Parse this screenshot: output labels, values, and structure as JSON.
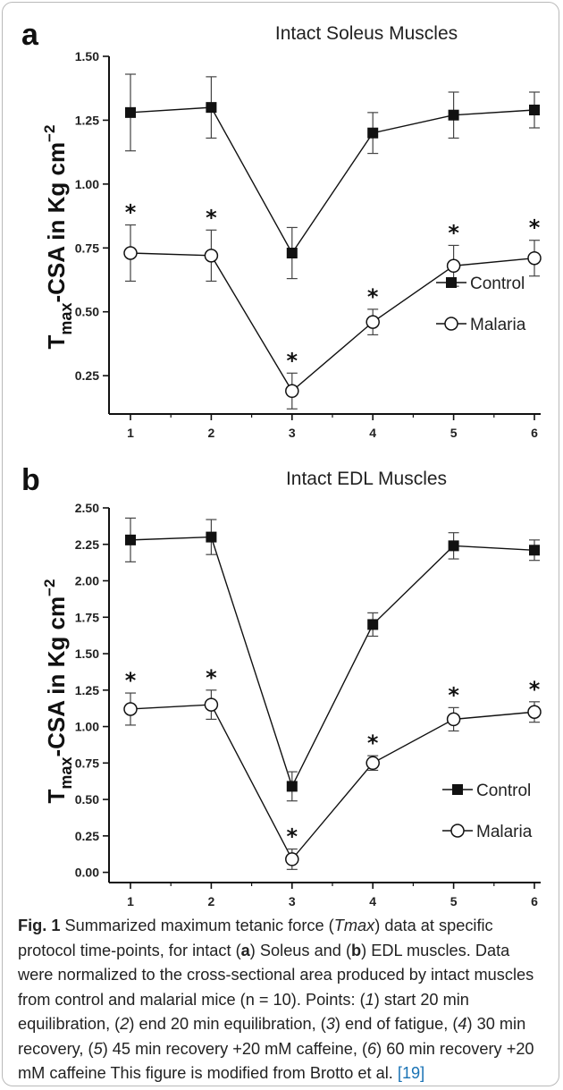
{
  "chart_data": [
    {
      "type": "line",
      "panel_letter": "a",
      "title": "Intact Soleus Muscles",
      "ylabel_main": "T",
      "ylabel_sub": "max",
      "ylabel_rest": "-CSA in Kg cm",
      "ylabel_sup": "−2",
      "x": [
        1,
        2,
        3,
        4,
        5,
        6
      ],
      "x_tick_labels": [
        "1",
        "2",
        "3",
        "4",
        "5",
        "6"
      ],
      "y_ticks": [
        0.25,
        0.5,
        0.75,
        1.0,
        1.25,
        1.5
      ],
      "y_tick_labels": [
        "0.25",
        "0.50",
        "0.75",
        "1.00",
        "1.25",
        "1.50"
      ],
      "ylim": [
        0.1,
        1.5
      ],
      "series": [
        {
          "name": "Control",
          "marker": "filled-square",
          "values": [
            1.28,
            1.3,
            0.73,
            1.2,
            1.27,
            1.29
          ],
          "errors": [
            0.15,
            0.12,
            0.1,
            0.08,
            0.09,
            0.07
          ]
        },
        {
          "name": "Malaria",
          "marker": "open-circle",
          "values": [
            0.73,
            0.72,
            0.19,
            0.46,
            0.68,
            0.71
          ],
          "errors": [
            0.11,
            0.1,
            0.07,
            0.05,
            0.08,
            0.07
          ]
        }
      ],
      "significance_markers": [
        {
          "x": 1,
          "text": "*"
        },
        {
          "x": 2,
          "text": "*"
        },
        {
          "x": 3,
          "text": "*"
        },
        {
          "x": 4,
          "text": "*"
        },
        {
          "x": 5,
          "text": "*"
        },
        {
          "x": 6,
          "text": "*"
        }
      ],
      "legend_position": "right"
    },
    {
      "type": "line",
      "panel_letter": "b",
      "title": "Intact EDL Muscles",
      "ylabel_main": "T",
      "ylabel_sub": "max",
      "ylabel_rest": "-CSA in Kg cm",
      "ylabel_sup": "−2",
      "x": [
        1,
        2,
        3,
        4,
        5,
        6
      ],
      "x_tick_labels": [
        "1",
        "2",
        "3",
        "4",
        "5",
        "6"
      ],
      "y_ticks": [
        0.0,
        0.25,
        0.5,
        0.75,
        1.0,
        1.25,
        1.5,
        1.75,
        2.0,
        2.25,
        2.5
      ],
      "y_tick_labels": [
        "0.00",
        "0.25",
        "0.50",
        "0.75",
        "1.00",
        "1.25",
        "1.50",
        "1.75",
        "2.00",
        "2.25",
        "2.50"
      ],
      "ylim": [
        -0.07,
        2.5
      ],
      "series": [
        {
          "name": "Control",
          "marker": "filled-square",
          "values": [
            2.28,
            2.3,
            0.59,
            1.7,
            2.24,
            2.21
          ],
          "errors": [
            0.15,
            0.12,
            0.1,
            0.08,
            0.09,
            0.07
          ]
        },
        {
          "name": "Malaria",
          "marker": "open-circle",
          "values": [
            1.12,
            1.15,
            0.09,
            0.75,
            1.05,
            1.1
          ],
          "errors": [
            0.11,
            0.1,
            0.07,
            0.05,
            0.08,
            0.07
          ]
        }
      ],
      "significance_markers": [
        {
          "x": 1,
          "text": "*"
        },
        {
          "x": 2,
          "text": "*"
        },
        {
          "x": 3,
          "text": "*"
        },
        {
          "x": 4,
          "text": "*"
        },
        {
          "x": 5,
          "text": "*"
        },
        {
          "x": 6,
          "text": "*"
        }
      ],
      "legend_position": "right"
    }
  ],
  "caption": {
    "label": "Fig. 1",
    "t1": "  Summarized maximum tetanic force (",
    "t2": "Tmax",
    "t3": ") data at specific protocol time-points, for intact (",
    "t4": "a",
    "t5": ") Soleus and (",
    "t6": "b",
    "t7": ") EDL muscles. Data were normalized to the cross-sectional area produced by intact muscles from control and malarial mice (n = 10). Points: (",
    "p1": "1",
    "t8": ") start 20 min equilibration, (",
    "p2": "2",
    "t9": ") end 20 min equilibration, (",
    "p3": "3",
    "t10": ") end of fatigue, (",
    "p4": "4",
    "t11": ") 30 min recovery, (",
    "p5": "5",
    "t12": ") 45 min recovery +20 mM caffeine, (",
    "p6": "6",
    "t13": ") 60 min recovery +20 mM caffeine This figure is modified from Brotto et al. ",
    "ref": "[19]"
  }
}
